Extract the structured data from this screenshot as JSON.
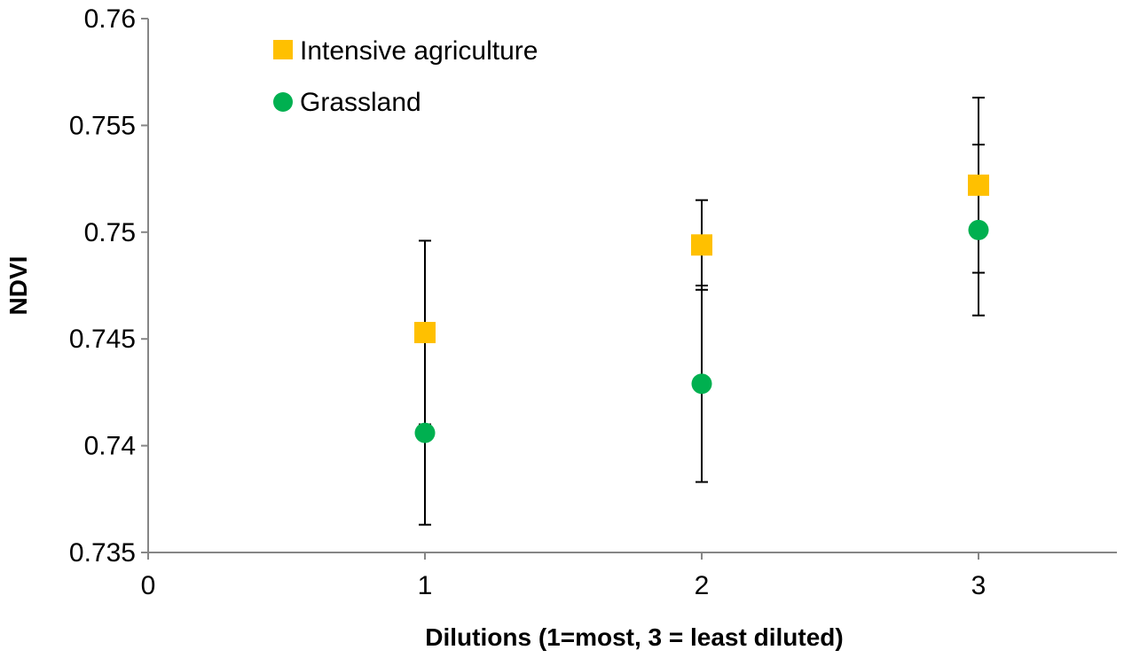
{
  "chart_data": {
    "type": "scatter",
    "title": "",
    "xlabel": "Dilutions (1=most, 3 = least diluted)",
    "ylabel": "NDVI",
    "xlim": [
      0,
      3.5
    ],
    "ylim": [
      0.735,
      0.76
    ],
    "x_ticks": [
      0,
      1,
      2,
      3
    ],
    "x_tick_labels": [
      "0",
      "1",
      "2",
      "3"
    ],
    "y_ticks": [
      0.735,
      0.74,
      0.745,
      0.75,
      0.755,
      0.76
    ],
    "y_tick_labels": [
      "0.735",
      "0.74",
      "0.745",
      "0.75",
      "0.755",
      "0.76"
    ],
    "grid": false,
    "legend_position": "top-left",
    "series": [
      {
        "name": "Intensive agriculture",
        "marker": "square",
        "color": "#FFC000",
        "x": [
          1,
          2,
          3
        ],
        "y": [
          0.7453,
          0.7494,
          0.7522
        ],
        "error": [
          0.0043,
          0.0021,
          0.0041
        ]
      },
      {
        "name": "Grassland",
        "marker": "circle",
        "color": "#00B050",
        "x": [
          1,
          2,
          3
        ],
        "y": [
          0.7406,
          0.7429,
          0.7501
        ],
        "error": [
          0.0043,
          0.0046,
          0.004
        ]
      }
    ]
  }
}
